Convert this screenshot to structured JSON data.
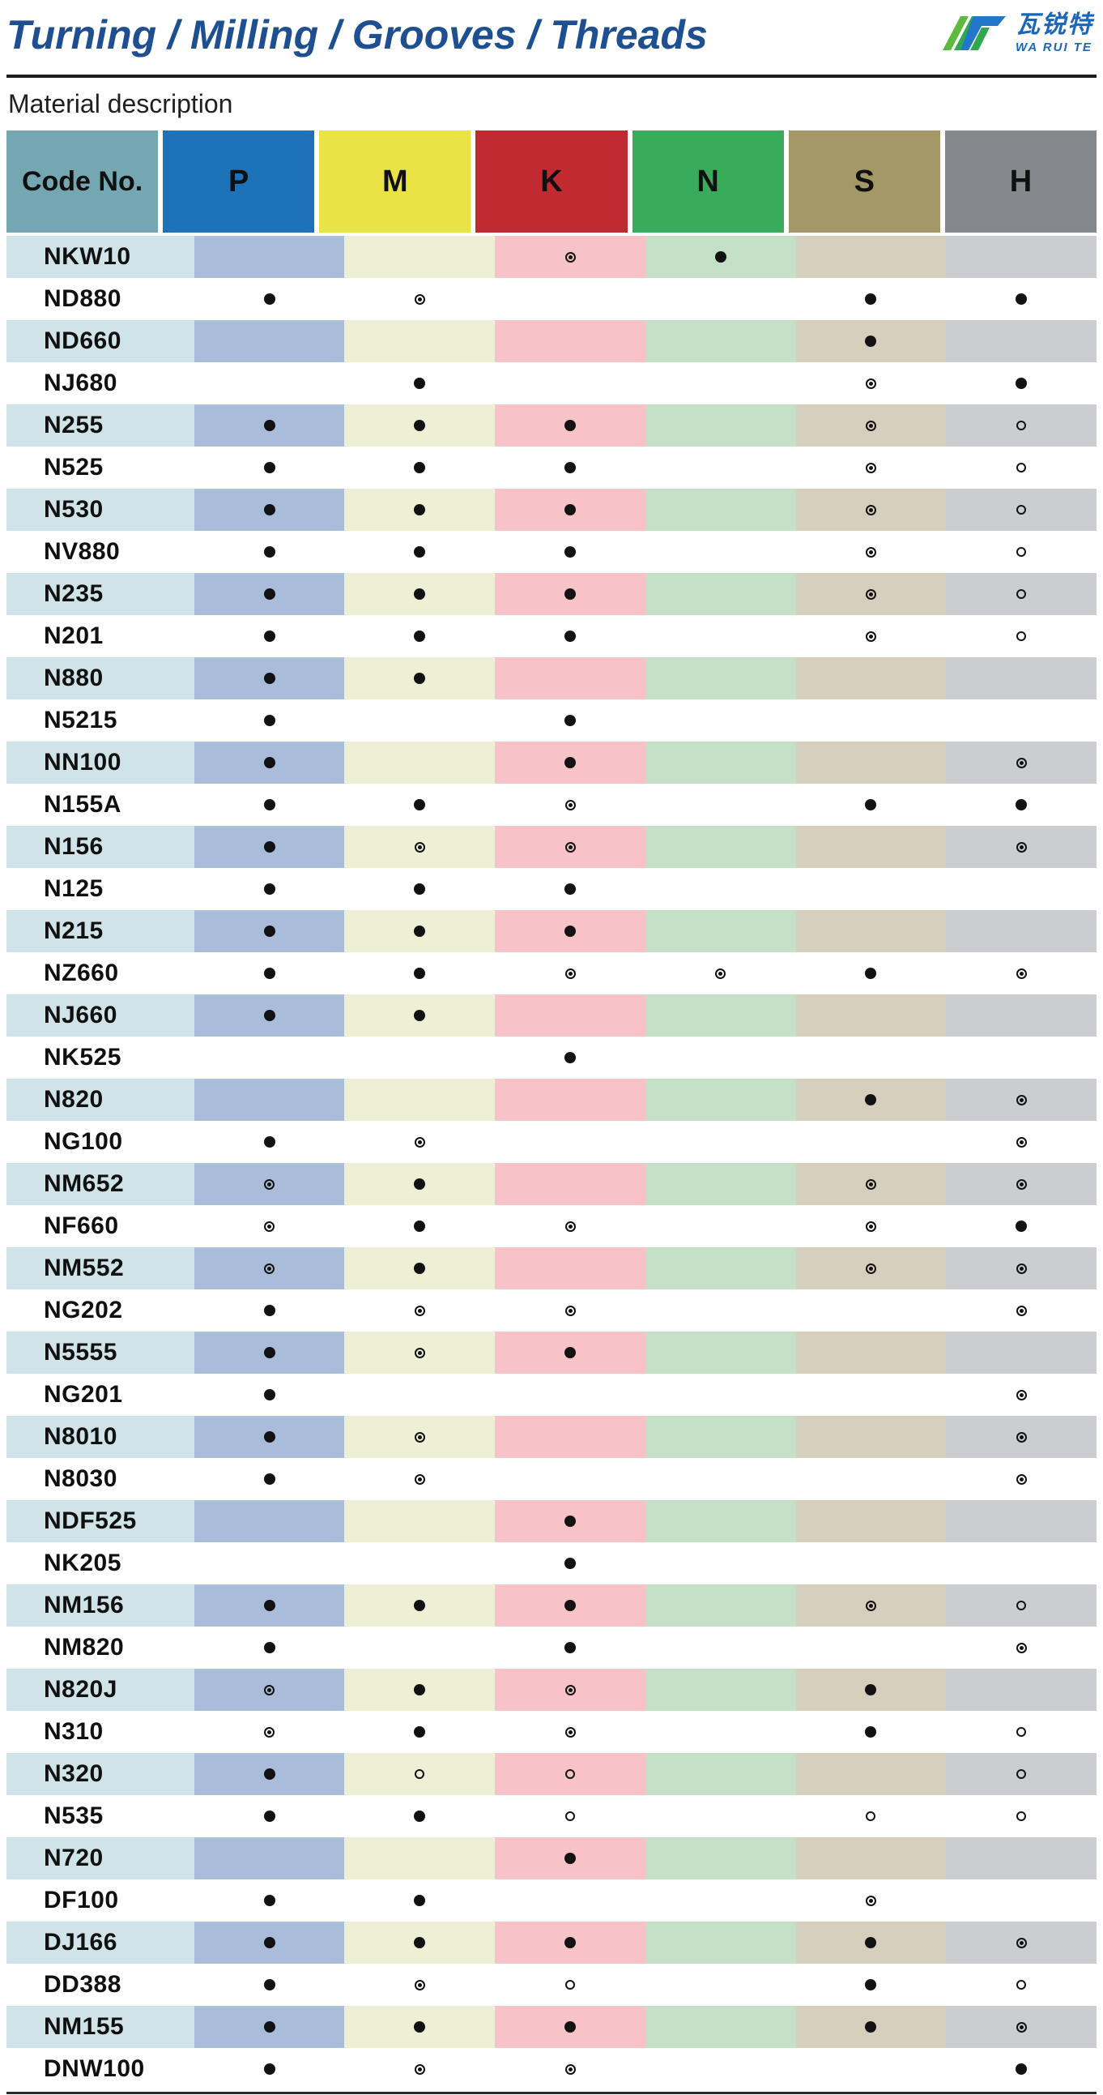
{
  "page": {
    "title": "Turning / Milling / Grooves / Threads",
    "section_title": "Material description",
    "logo": {
      "brand_cn": "瓦锐特",
      "brand_en": "WA RUI TE"
    },
    "colors": {
      "title_blue": "#1d4f91",
      "brand_blue": "#1b66b8",
      "logo_green": "#4cb648",
      "rule_black": "#1c1c1c"
    }
  },
  "table": {
    "columns": [
      "Code No.",
      "P",
      "M",
      "K",
      "N",
      "S",
      "H"
    ],
    "header_colors": [
      "#74a7b2",
      "#1e72b8",
      "#e9e345",
      "#c02a30",
      "#39ac5c",
      "#a49768",
      "#85888c"
    ],
    "tint_colors": [
      "#cfe3e9",
      "#a9bcd9",
      "#eef0d5",
      "#f8c3c8",
      "#c4e0c7",
      "#d7cfbd",
      "#cbcdd0"
    ],
    "mark_symbols": {
      "filled": "●",
      "double": "◎",
      "open": "○"
    },
    "rows": [
      {
        "code": "NKW10",
        "marks": [
          "",
          "",
          "double",
          "filled",
          "",
          ""
        ]
      },
      {
        "code": "ND880",
        "marks": [
          "filled",
          "double",
          "",
          "",
          "filled",
          "filled"
        ]
      },
      {
        "code": "ND660",
        "marks": [
          "",
          "",
          "",
          "",
          "filled",
          ""
        ]
      },
      {
        "code": "NJ680",
        "marks": [
          "",
          "filled",
          "",
          "",
          "double",
          "filled"
        ]
      },
      {
        "code": "N255",
        "marks": [
          "filled",
          "filled",
          "filled",
          "",
          "double",
          "open"
        ]
      },
      {
        "code": "N525",
        "marks": [
          "filled",
          "filled",
          "filled",
          "",
          "double",
          "open"
        ]
      },
      {
        "code": "N530",
        "marks": [
          "filled",
          "filled",
          "filled",
          "",
          "double",
          "open"
        ]
      },
      {
        "code": "NV880",
        "marks": [
          "filled",
          "filled",
          "filled",
          "",
          "double",
          "open"
        ]
      },
      {
        "code": "N235",
        "marks": [
          "filled",
          "filled",
          "filled",
          "",
          "double",
          "open"
        ]
      },
      {
        "code": "N201",
        "marks": [
          "filled",
          "filled",
          "filled",
          "",
          "double",
          "open"
        ]
      },
      {
        "code": "N880",
        "marks": [
          "filled",
          "filled",
          "",
          "",
          "",
          ""
        ]
      },
      {
        "code": "N5215",
        "marks": [
          "filled",
          "",
          "filled",
          "",
          "",
          ""
        ]
      },
      {
        "code": "NN100",
        "marks": [
          "filled",
          "",
          "filled",
          "",
          "",
          "double"
        ]
      },
      {
        "code": "N155A",
        "marks": [
          "filled",
          "filled",
          "double",
          "",
          "filled",
          "filled"
        ]
      },
      {
        "code": "N156",
        "marks": [
          "filled",
          "double",
          "double",
          "",
          "",
          "double"
        ]
      },
      {
        "code": "N125",
        "marks": [
          "filled",
          "filled",
          "filled",
          "",
          "",
          ""
        ]
      },
      {
        "code": "N215",
        "marks": [
          "filled",
          "filled",
          "filled",
          "",
          "",
          ""
        ]
      },
      {
        "code": "NZ660",
        "marks": [
          "filled",
          "filled",
          "double",
          "double",
          "filled",
          "double"
        ]
      },
      {
        "code": "NJ660",
        "marks": [
          "filled",
          "filled",
          "",
          "",
          "",
          ""
        ]
      },
      {
        "code": "NK525",
        "marks": [
          "",
          "",
          "filled",
          "",
          "",
          ""
        ]
      },
      {
        "code": "N820",
        "marks": [
          "",
          "",
          "",
          "",
          "filled",
          "double"
        ]
      },
      {
        "code": "NG100",
        "marks": [
          "filled",
          "double",
          "",
          "",
          "",
          "double"
        ]
      },
      {
        "code": "NM652",
        "marks": [
          "double",
          "filled",
          "",
          "",
          "double",
          "double"
        ]
      },
      {
        "code": "NF660",
        "marks": [
          "double",
          "filled",
          "double",
          "",
          "double",
          "filled"
        ]
      },
      {
        "code": "NM552",
        "marks": [
          "double",
          "filled",
          "",
          "",
          "double",
          "double"
        ]
      },
      {
        "code": "NG202",
        "marks": [
          "filled",
          "double",
          "double",
          "",
          "",
          "double"
        ]
      },
      {
        "code": "N5555",
        "marks": [
          "filled",
          "double",
          "filled",
          "",
          "",
          ""
        ]
      },
      {
        "code": "NG201",
        "marks": [
          "filled",
          "",
          "",
          "",
          "",
          "double"
        ]
      },
      {
        "code": "N8010",
        "marks": [
          "filled",
          "double",
          "",
          "",
          "",
          "double"
        ]
      },
      {
        "code": "N8030",
        "marks": [
          "filled",
          "double",
          "",
          "",
          "",
          "double"
        ]
      },
      {
        "code": "NDF525",
        "marks": [
          "",
          "",
          "filled",
          "",
          "",
          ""
        ]
      },
      {
        "code": "NK205",
        "marks": [
          "",
          "",
          "filled",
          "",
          "",
          ""
        ]
      },
      {
        "code": "NM156",
        "marks": [
          "filled",
          "filled",
          "filled",
          "",
          "double",
          "open"
        ]
      },
      {
        "code": "NM820",
        "marks": [
          "filled",
          "",
          "filled",
          "",
          "",
          "double"
        ]
      },
      {
        "code": "N820J",
        "marks": [
          "double",
          "filled",
          "double",
          "",
          "filled",
          ""
        ]
      },
      {
        "code": "N310",
        "marks": [
          "double",
          "filled",
          "double",
          "",
          "filled",
          "open"
        ]
      },
      {
        "code": "N320",
        "marks": [
          "filled",
          "open",
          "open",
          "",
          "",
          "open"
        ]
      },
      {
        "code": "N535",
        "marks": [
          "filled",
          "filled",
          "open",
          "",
          "open",
          "open"
        ]
      },
      {
        "code": "N720",
        "marks": [
          "",
          "",
          "filled",
          "",
          "",
          ""
        ]
      },
      {
        "code": "DF100",
        "marks": [
          "filled",
          "filled",
          "",
          "",
          "double",
          ""
        ]
      },
      {
        "code": "DJ166",
        "marks": [
          "filled",
          "filled",
          "filled",
          "",
          "filled",
          "double"
        ]
      },
      {
        "code": "DD388",
        "marks": [
          "filled",
          "double",
          "open",
          "",
          "filled",
          "open"
        ]
      },
      {
        "code": "NM155",
        "marks": [
          "filled",
          "filled",
          "filled",
          "",
          "filled",
          "double"
        ]
      },
      {
        "code": "DNW100",
        "marks": [
          "filled",
          "double",
          "double",
          "",
          "",
          "filled"
        ]
      }
    ]
  }
}
